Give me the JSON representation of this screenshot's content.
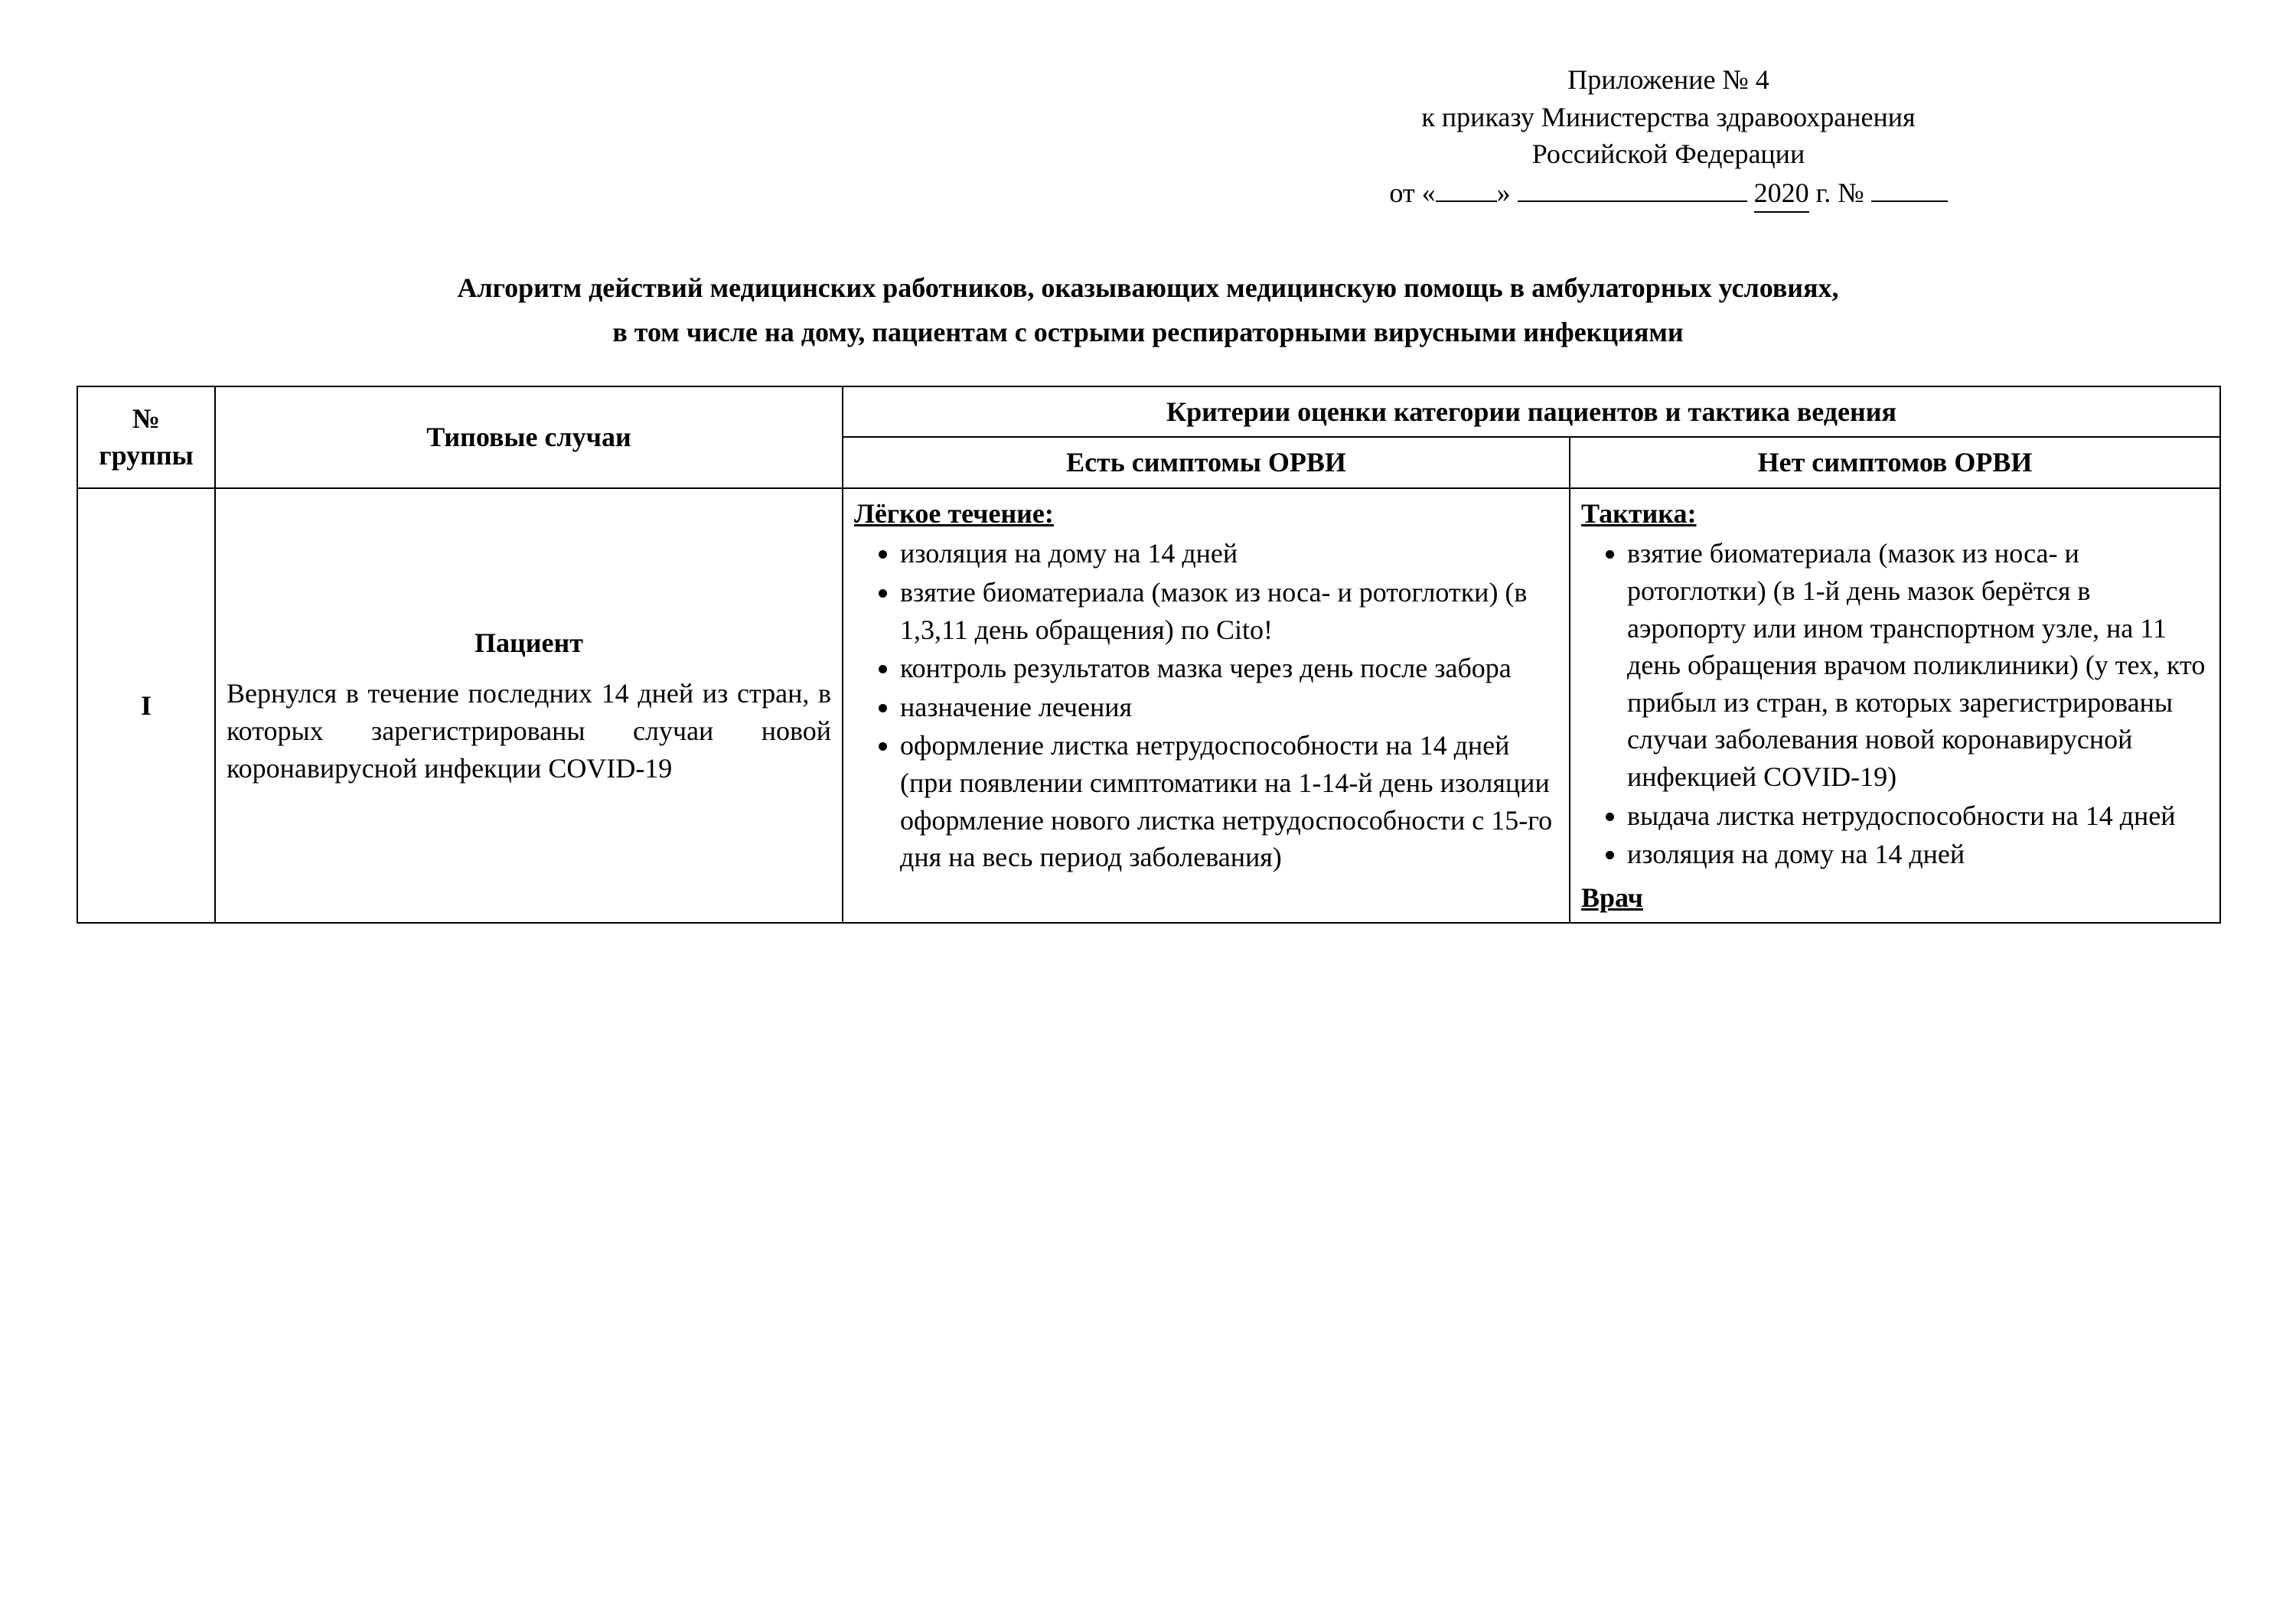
{
  "header": {
    "attachment": "Приложение № 4",
    "decree": "к приказу Министерства здравоохранения",
    "federation": "Российской Федерации",
    "from": "от «",
    "closeq": "»",
    "year_prefix": "2020",
    "year_suffix": "г. №"
  },
  "title_line1": "Алгоритм действий медицинских работников, оказывающих медицинскую помощь в амбулаторных условиях,",
  "title_line2": "в том числе на дому, пациентам с острыми респираторными вирусными инфекциями",
  "table": {
    "head": {
      "group": "№ группы",
      "cases": "Типовые случаи",
      "criteria": "Критерии оценки категории пациентов и тактика ведения",
      "yes": "Есть симптомы ОРВИ",
      "no": "Нет симптомов ОРВИ"
    },
    "row1": {
      "group": "I",
      "case_heading": "Пациент",
      "case_body": "Вернулся в течение последних 14 дней из стран, в которых зарегистрированы случаи новой коронавирусной инфекции COVID-19",
      "yes": {
        "heading": "Лёгкое течение:",
        "items": [
          "изоляция на дому на 14 дней",
          "взятие биоматериала (мазок из носа- и ротоглотки) (в 1,3,11 день обращения) по Cito!",
          "контроль результатов мазка через день после забора",
          "назначение лечения",
          "оформление листка нетрудоспособности на 14 дней (при появлении симптоматики на 1-14-й день изоляции оформление нового листка нетрудоспособности с 15-го дня на весь период заболевания)"
        ]
      },
      "no": {
        "heading": "Тактика:",
        "items": [
          "взятие биоматериала (мазок из носа- и ротоглотки) (в 1-й день мазок берётся в аэропорту или ином транспортном узле, на 11 день обращения врачом поликлиники) (у тех, кто прибыл из стран, в которых зарегистрированы случаи заболевания новой коронавирусной инфекцией COVID-19)",
          "выдача листка нетрудоспособности на 14 дней",
          "изоляция на дому на 14 дней"
        ],
        "footer": "Врач"
      }
    }
  }
}
